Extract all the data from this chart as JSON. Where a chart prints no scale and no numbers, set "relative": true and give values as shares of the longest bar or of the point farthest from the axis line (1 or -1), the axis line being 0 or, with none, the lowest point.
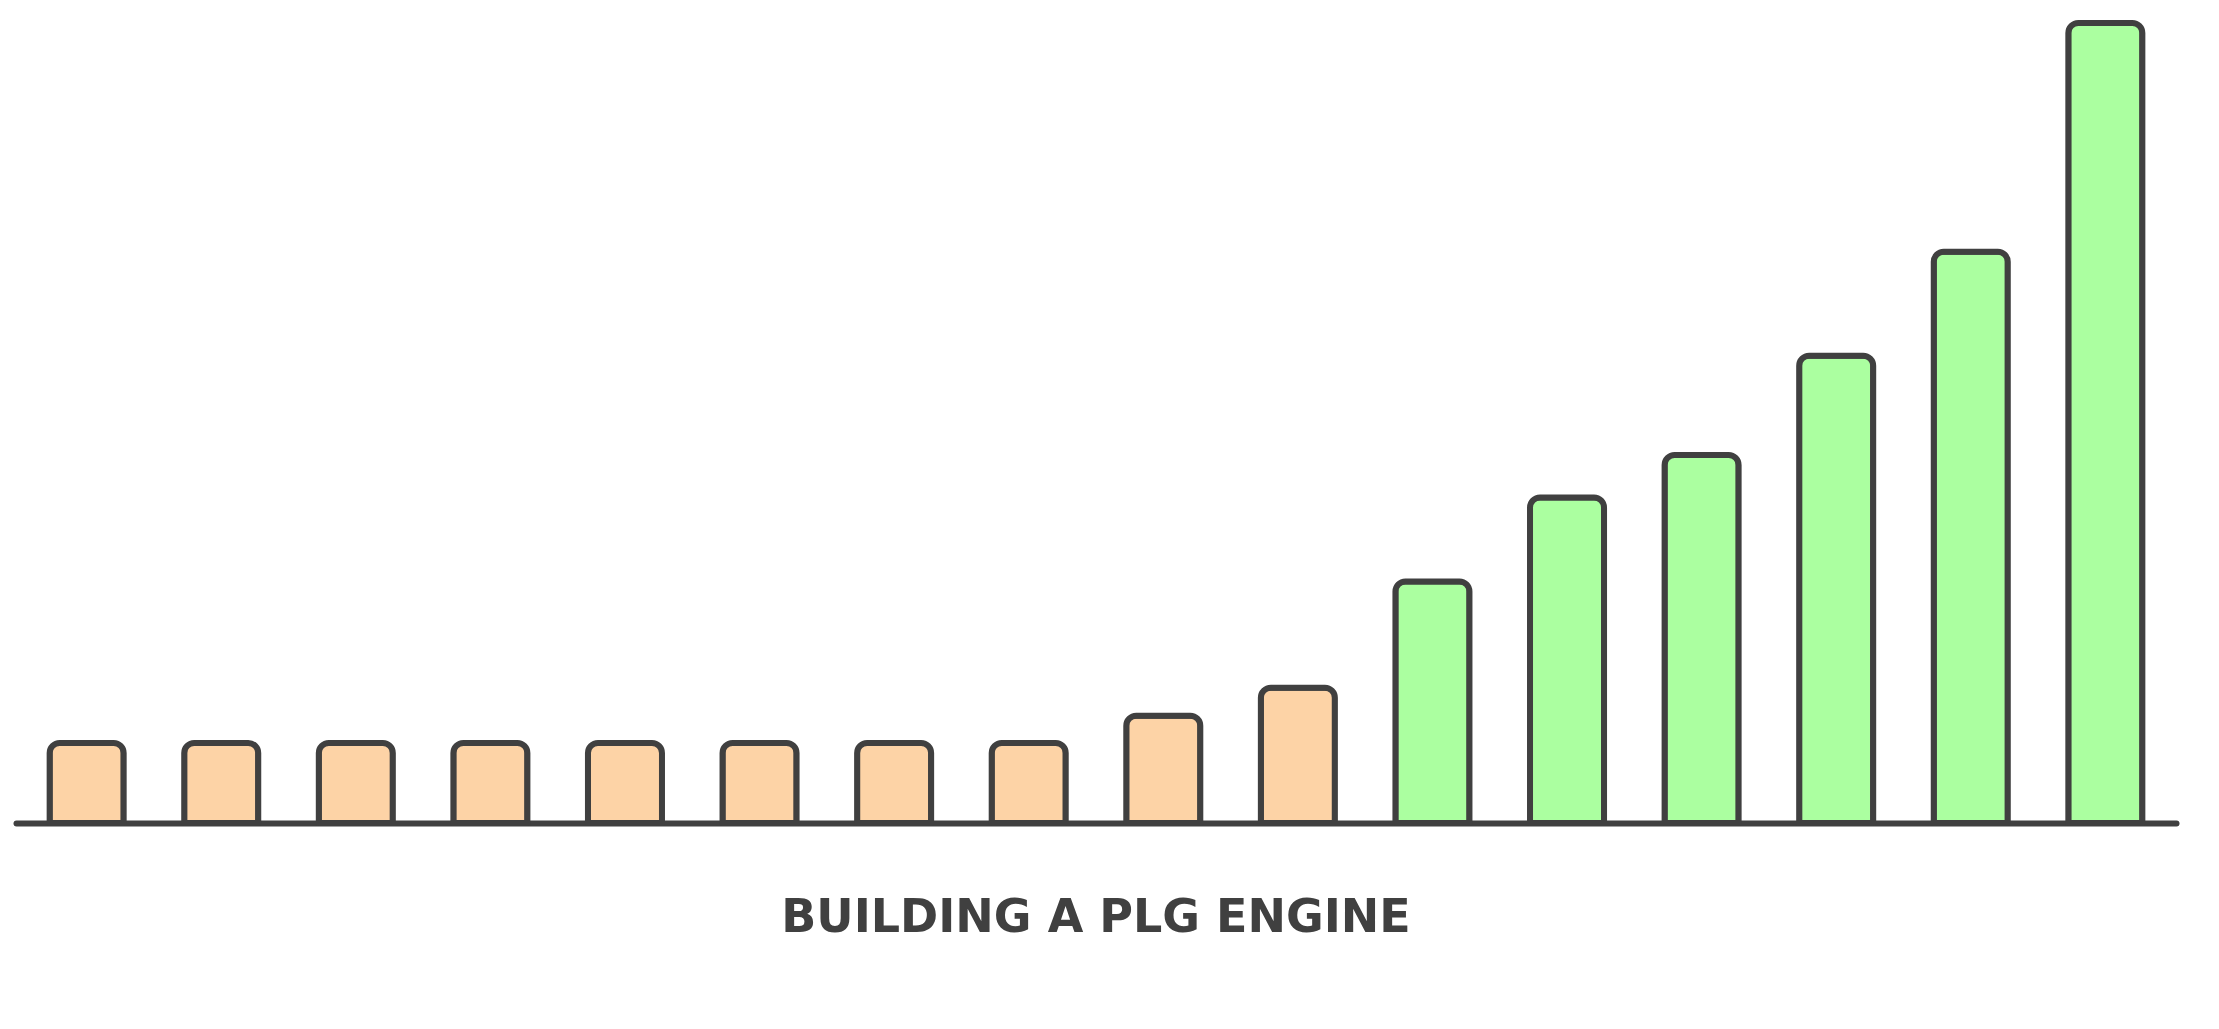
{
  "chart_data": {
    "type": "bar",
    "title": "BUILDING A PLG ENGINE",
    "relative": true,
    "legend": false,
    "grid": false,
    "categories": [
      null,
      null,
      null,
      null,
      null,
      null,
      null,
      null,
      null,
      null,
      null,
      null,
      null,
      null,
      null,
      null
    ],
    "values": [
      0.1,
      0.1,
      0.1,
      0.1,
      0.1,
      0.1,
      0.1,
      0.1,
      0.134,
      0.169,
      0.302,
      0.407,
      0.46,
      0.584,
      0.714,
      1
    ],
    "colors": [
      "#fdd3a6",
      "#fdd3a6",
      "#fdd3a6",
      "#fdd3a6",
      "#fdd3a6",
      "#fdd3a6",
      "#fdd3a6",
      "#fdd3a6",
      "#fdd3a6",
      "#fdd3a6",
      "#abffa0",
      "#abffa0",
      "#abffa0",
      "#abffa0",
      "#abffa0",
      "#abffa0"
    ]
  }
}
